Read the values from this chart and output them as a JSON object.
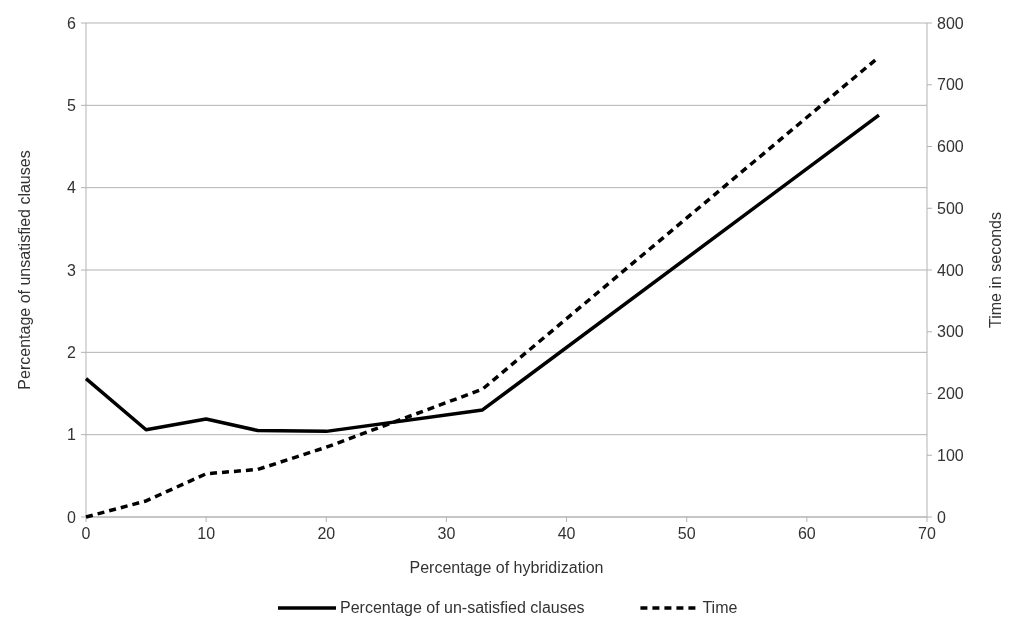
{
  "chart_data": {
    "type": "line",
    "xlabel": "Percentage of hybridization",
    "ylabel": "Percentage of unsatisfied clauses",
    "y2label": "Time in seconds",
    "x": [
      0,
      5,
      10,
      14.3,
      20,
      33,
      66
    ],
    "series": [
      {
        "name": "Percentage of un-satisfied clauses",
        "color": "#000000",
        "values": [
          1.68,
          1.06,
          1.19,
          1.05,
          1.04,
          1.3,
          4.88
        ],
        "line_style": "solid"
      },
      {
        "name": "Time",
        "color": "#000000",
        "values": [
          0,
          26,
          70,
          77,
          113,
          207,
          745
        ],
        "axis": "y2",
        "line_style": "dashed"
      }
    ],
    "xlim": [
      0,
      70
    ],
    "xticks": [
      0,
      10,
      20,
      30,
      40,
      50,
      60,
      70
    ],
    "ylim": [
      0,
      6
    ],
    "yticks": [
      0,
      1,
      2,
      3,
      4,
      5,
      6
    ],
    "y2lim": [
      0,
      800
    ],
    "y2ticks": [
      0,
      100,
      200,
      300,
      400,
      500,
      600,
      700,
      800
    ],
    "grid": "y",
    "legend": "bottom",
    "marker": "none"
  }
}
